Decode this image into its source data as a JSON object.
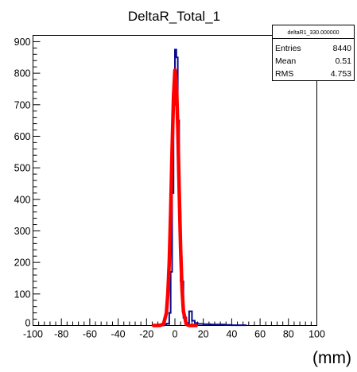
{
  "chart_data": {
    "type": "line",
    "title": "DeltaR_Total_1",
    "xlabel": "(mm)",
    "ylabel": "",
    "xlim": [
      -100,
      100
    ],
    "ylim": [
      0,
      920
    ],
    "x_ticks": [
      -100,
      -80,
      -60,
      -40,
      -20,
      0,
      20,
      40,
      60,
      80,
      100
    ],
    "x_tick_labels": [
      "-100",
      "-80",
      "-60",
      "-40",
      "-20",
      "0",
      "20",
      "40",
      "60",
      "80",
      "100"
    ],
    "y_ticks": [
      100,
      200,
      300,
      400,
      500,
      600,
      700,
      800,
      900
    ],
    "y_tick_labels": [
      "100",
      "200",
      "300",
      "400",
      "500",
      "600",
      "700",
      "800",
      "900"
    ],
    "colors": {
      "histogram": "#0a0a8c",
      "fit": "#ff0000"
    },
    "series": [
      {
        "kind": "histogram",
        "x": [
          -10,
          -8,
          -6,
          -4,
          -3,
          -2,
          -1,
          0,
          1,
          2,
          3,
          4,
          6,
          8,
          10,
          12,
          14,
          16,
          20,
          25,
          30,
          35,
          40,
          50
        ],
        "values": [
          0,
          2,
          6,
          40,
          170,
          420,
          700,
          875,
          850,
          650,
          360,
          140,
          25,
          8,
          45,
          15,
          8,
          5,
          4,
          3,
          3,
          2,
          1,
          0
        ]
      },
      {
        "kind": "gaussian-fit",
        "x": [
          -15,
          -12,
          -10,
          -8,
          -6,
          -5,
          -4,
          -3,
          -2,
          -1,
          0,
          1,
          2,
          3,
          4,
          5,
          6,
          8,
          10,
          12,
          15
        ],
        "values": [
          0,
          0,
          1,
          5,
          40,
          100,
          200,
          360,
          555,
          725,
          810,
          775,
          630,
          430,
          245,
          115,
          45,
          4,
          0,
          0,
          0
        ]
      }
    ],
    "stats_box": {
      "name": "deltaR1_330.000000",
      "rows": [
        {
          "label": "Entries",
          "value": "8440"
        },
        {
          "label": "Mean",
          "value": "0.51"
        },
        {
          "label": "RMS",
          "value": "4.753"
        }
      ]
    },
    "grid": false,
    "legend": "top-right"
  }
}
